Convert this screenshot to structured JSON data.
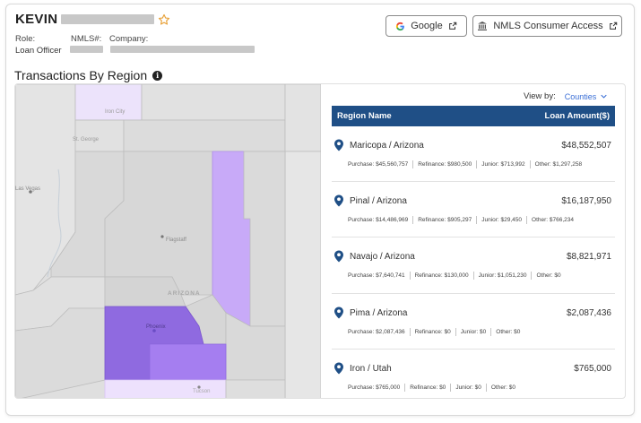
{
  "profile": {
    "first_name": "KEVIN",
    "role_label": "Role:",
    "role_value": "Loan Officer",
    "nmls_label": "NMLS#:",
    "company_label": "Company:"
  },
  "buttons": {
    "google_label": "Google",
    "nmls_label": "NMLS Consumer Access"
  },
  "section": {
    "title": "Transactions By Region"
  },
  "view_by": {
    "label": "View by:",
    "selected": "Counties"
  },
  "table": {
    "col_region": "Region Name",
    "col_amount": "Loan Amount($)",
    "rows": [
      {
        "name": "Maricopa / Arizona",
        "amount": "$48,552,507",
        "purchase": "Purchase: $45,560,757",
        "refinance": "Refinance: $980,500",
        "junior": "Junior: $713,992",
        "other": "Other: $1,297,258"
      },
      {
        "name": "Pinal / Arizona",
        "amount": "$16,187,950",
        "purchase": "Purchase: $14,486,969",
        "refinance": "Refinance: $905,297",
        "junior": "Junior: $29,450",
        "other": "Other: $766,234"
      },
      {
        "name": "Navajo / Arizona",
        "amount": "$8,821,971",
        "purchase": "Purchase: $7,640,741",
        "refinance": "Refinance: $130,000",
        "junior": "Junior: $1,051,230",
        "other": "Other: $0"
      },
      {
        "name": "Pima / Arizona",
        "amount": "$2,087,436",
        "purchase": "Purchase: $2,087,436",
        "refinance": "Refinance: $0",
        "junior": "Junior: $0",
        "other": "Other: $0"
      },
      {
        "name": "Iron / Utah",
        "amount": "$765,000",
        "purchase": "Purchase: $765,000",
        "refinance": "Refinance: $0",
        "junior": "Junior: $0",
        "other": "Other: $0"
      }
    ]
  },
  "map": {
    "labels": {
      "iron_city": "Iron City",
      "st_george": "St. George",
      "las_vegas": "Las Vegas",
      "flagstaff": "Flagstaff",
      "arizona": "ARIZONA",
      "phoenix": "Phoenix",
      "tucson": "Tucson"
    },
    "colors": {
      "maricopa": "#8f6ae0",
      "pinal": "#a57ef0",
      "navajo": "#c8aaf8",
      "pima": "#ede1fd",
      "iron": "#ece3fb",
      "base": "#dfdfdf"
    }
  },
  "colors": {
    "accent": "#1f4f86",
    "link": "#3b6fd6",
    "star": "#e8a23a"
  },
  "icons": [
    "star-icon",
    "google-icon",
    "external-link-icon",
    "bank-icon",
    "info-icon",
    "chevron-down-icon",
    "map-pin-icon"
  ]
}
